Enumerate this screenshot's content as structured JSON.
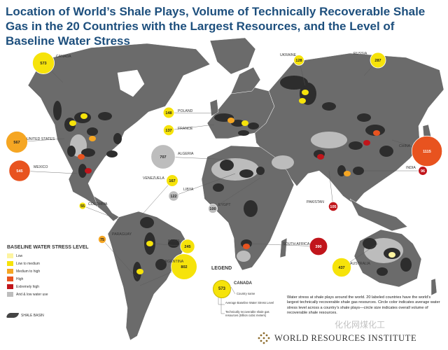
{
  "title": "Location of World’s Shale Plays, Volume of Technically Recoverable Shale Gas in the 20 Countries with the Largest Resources, and the Level of Baseline Water Stress",
  "stress_colors": {
    "low": "#fdf4a0",
    "low_to_medium": "#f6e30a",
    "medium_to_high": "#f5a623",
    "high": "#e8531f",
    "extremely_high": "#c1151b",
    "arid": "#bdbdbd"
  },
  "countries": [
    {
      "name": "CANADA",
      "value": "573",
      "stress": "low_to_medium"
    },
    {
      "name": "UKRAINE",
      "value": "128",
      "stress": "low_to_medium"
    },
    {
      "name": "RUSSIA",
      "value": "287",
      "stress": "low_to_medium"
    },
    {
      "name": "POLAND",
      "value": "148",
      "stress": "low_to_medium"
    },
    {
      "name": "FRANCE",
      "value": "137",
      "stress": "low_to_medium"
    },
    {
      "name": "UNITED STATES",
      "value": "567",
      "stress": "medium_to_high"
    },
    {
      "name": "ALGERIA",
      "value": "707",
      "stress": "arid"
    },
    {
      "name": "CHINA",
      "value": "1115",
      "stress": "high"
    },
    {
      "name": "MEXICO",
      "value": "545",
      "stress": "high"
    },
    {
      "name": "INDIA",
      "value": "96",
      "stress": "extremely_high"
    },
    {
      "name": "VENEZUELA",
      "value": "167",
      "stress": "low_to_medium"
    },
    {
      "name": "LIBYA",
      "value": "122",
      "stress": "arid"
    },
    {
      "name": "COLOMBIA",
      "value": "55",
      "stress": "low_to_medium"
    },
    {
      "name": "EYGPT",
      "value": "100",
      "stress": "arid"
    },
    {
      "name": "PAKISTAN",
      "value": "105",
      "stress": "extremely_high"
    },
    {
      "name": "PARAGUAY",
      "value": "75",
      "stress": "medium_to_high"
    },
    {
      "name": "BRAZIL",
      "value": "245",
      "stress": "low_to_medium"
    },
    {
      "name": "SOUTH AFRICA",
      "value": "390",
      "stress": "extremely_high"
    },
    {
      "name": "ARGENTINA",
      "value": "802",
      "stress": "low_to_medium"
    },
    {
      "name": "AUSTRALIA",
      "value": "437",
      "stress": "low_to_medium"
    }
  ],
  "legend_stress": {
    "title": "BASELINE WATER STRESS LEVEL",
    "items": [
      {
        "label": "Low",
        "stress": "low"
      },
      {
        "label": "Low to medium",
        "stress": "low_to_medium"
      },
      {
        "label": "Medium to high",
        "stress": "medium_to_high"
      },
      {
        "label": "High",
        "stress": "high"
      },
      {
        "label": "Extremely high",
        "stress": "extremely_high"
      },
      {
        "label": "Arid & low water use",
        "stress": "arid"
      }
    ],
    "basin_label": "SHALE BASIN"
  },
  "legend_example": {
    "title": "LEGEND",
    "value": "573",
    "country": "CANADA",
    "ann_name": "Country name",
    "ann_stress": "Average Baseline Water Stress Level",
    "ann_volume": "Technically recoverable shale gas resources (trillion cubic meters)"
  },
  "note": "Water stress at shale plays around the world. 20 labeled countries have the world’s largest technically recoverable shale gas resources. Circle color indicates average water stress level across a country’s shale plays—circle size indicates overall volume of recoverable shale resources.",
  "organization": "WORLD RESOURCES INSTITUTE",
  "watermark": "化化网煤化工"
}
